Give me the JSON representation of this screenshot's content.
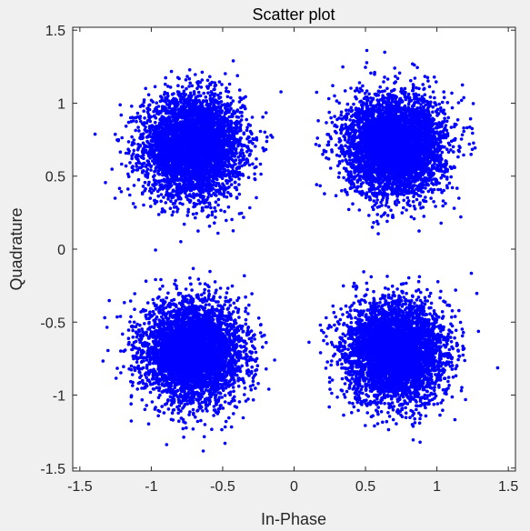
{
  "chart_data": {
    "type": "scatter",
    "title": "Scatter plot",
    "xlabel": "In-Phase",
    "ylabel": "Quadrature",
    "xlim": [
      -1.55,
      1.55
    ],
    "ylim": [
      -1.52,
      1.52
    ],
    "xticks": [
      -1.5,
      -1,
      -0.5,
      0,
      0.5,
      1,
      1.5
    ],
    "xtick_labels": [
      "-1.5",
      "-1",
      "-0.5",
      "0",
      "0.5",
      "1",
      "1.5"
    ],
    "yticks": [
      -1.5,
      -1,
      -0.5,
      0,
      0.5,
      1,
      1.5
    ],
    "ytick_labels": [
      "-1.5",
      "-1",
      "-0.5",
      "0",
      "0.5",
      "1",
      "1.5"
    ],
    "grid": false,
    "marker_color": "#0000ff",
    "axes_background": "#ffffff",
    "figure_background": "#f0f0f0",
    "series": [
      {
        "clusters": [
          {
            "center": [
              -0.707,
              0.707
            ],
            "spread": 0.17,
            "points": 4500
          },
          {
            "center": [
              0.707,
              0.707
            ],
            "spread": 0.17,
            "points": 4500
          },
          {
            "center": [
              -0.707,
              -0.707
            ],
            "spread": 0.17,
            "points": 4500
          },
          {
            "center": [
              0.707,
              -0.707
            ],
            "spread": 0.17,
            "points": 4500
          }
        ]
      }
    ]
  }
}
